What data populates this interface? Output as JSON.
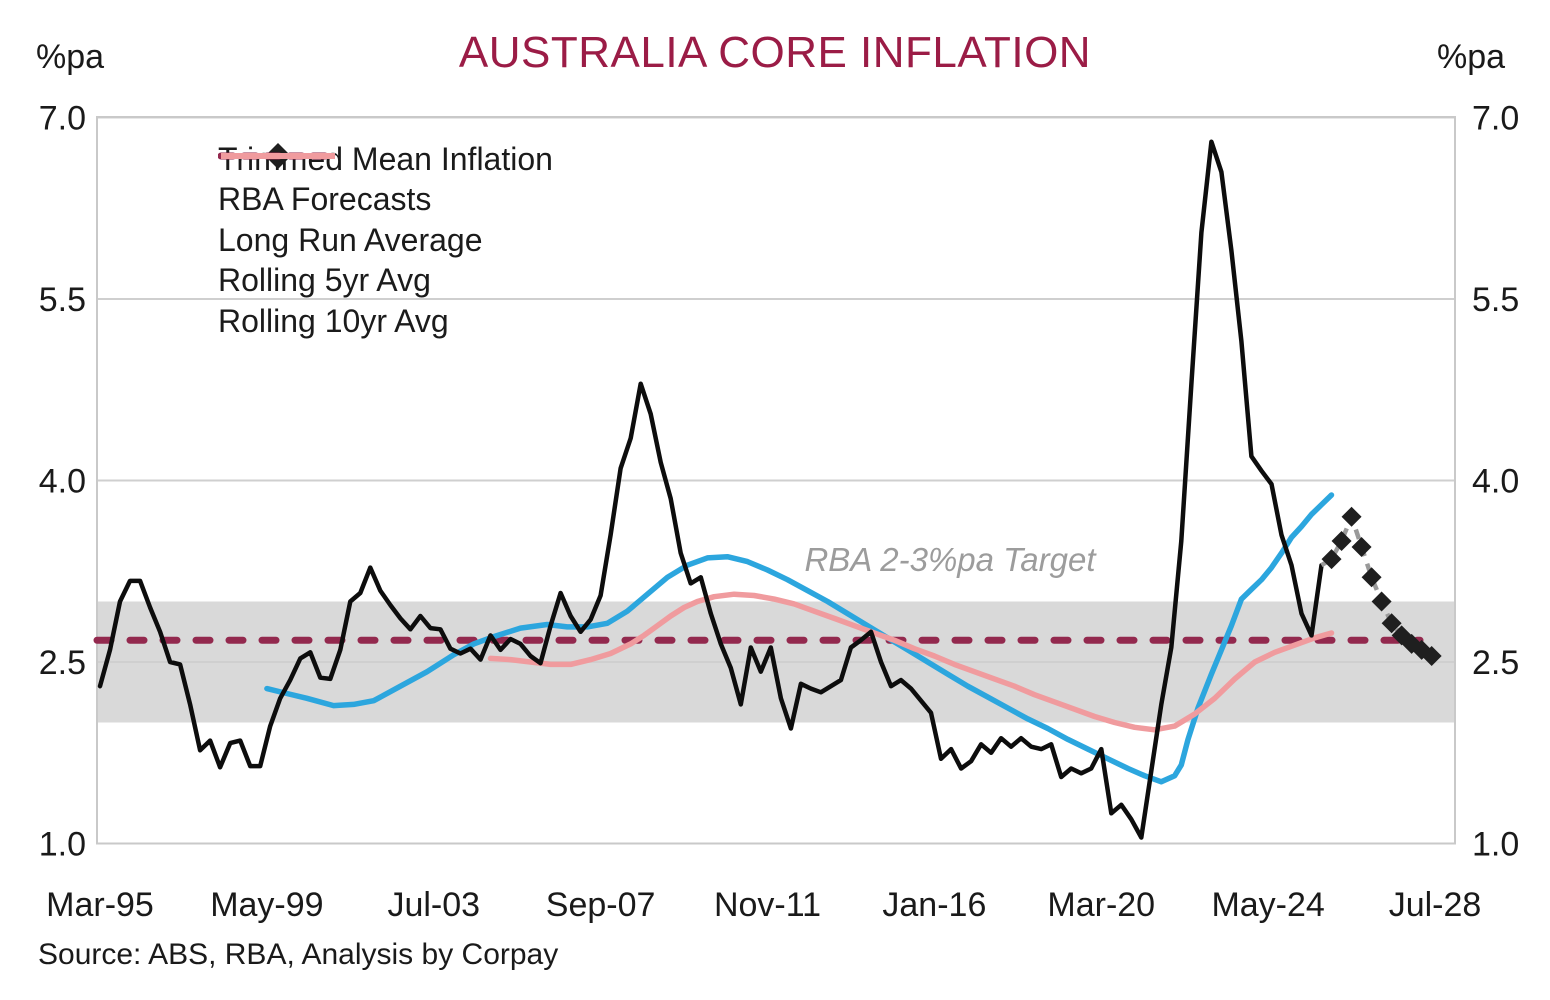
{
  "header": {
    "title": "AUSTRALIA CORE INFLATION",
    "y_unit_left": "%pa",
    "y_unit_right": "%pa"
  },
  "annotations": {
    "target_label": "RBA 2-3%pa Target",
    "source": "Source: ABS, RBA, Analysis by Corpay"
  },
  "legend": [
    {
      "label": "Trimmed Mean Inflation",
      "swatch": "solid",
      "color": "#0d0d0d",
      "width": 5
    },
    {
      "label": "RBA Forecasts",
      "swatch": "dash-diamond",
      "color": "#9a9a9a",
      "width": 4.5
    },
    {
      "label": "Long Run Average",
      "swatch": "dashed",
      "color": "#93294E",
      "width": 7
    },
    {
      "label": "Rolling 5yr Avg",
      "swatch": "solid",
      "color": "#2CA6DE",
      "width": 6
    },
    {
      "label": "Rolling 10yr Avg",
      "swatch": "solid",
      "color": "#F09B9E",
      "width": 6
    }
  ],
  "colors": {
    "title": "#9B1C46",
    "band": "#D9D9D9",
    "grid": "#CFCFCF",
    "border": "#C9C9C9",
    "axis_text": "#1a1a1a",
    "target_text": "#9C9C9C",
    "trimmed_mean": "#0d0d0d",
    "forecast_dash": "#9a9a9a",
    "forecast_diamond": "#1f1f1f",
    "long_run_avg": "#93294E",
    "rolling_5yr": "#2CA6DE",
    "rolling_10yr": "#F09B9E"
  },
  "chart_data": {
    "type": "line",
    "title": "AUSTRALIA CORE INFLATION",
    "ylabel": "%pa",
    "ylim": [
      1.0,
      7.0
    ],
    "y_ticks": [
      "7.0",
      "5.5",
      "4.0",
      "2.5",
      "1.0"
    ],
    "x_tick_labels": [
      "Mar-95",
      "May-99",
      "Jul-03",
      "Sep-07",
      "Nov-11",
      "Jan-16",
      "Mar-20",
      "May-24",
      "Jul-28"
    ],
    "x_tick_months": [
      0,
      50,
      100,
      150,
      200,
      250,
      300,
      350,
      400
    ],
    "grid": "horizontal",
    "legend_position": "upper-left-inside",
    "target_band": {
      "label": "RBA 2-3%pa Target",
      "from": 2.0,
      "to": 3.0
    },
    "long_run_average": {
      "name": "Long Run Average",
      "value": 2.68,
      "style": "dashed"
    },
    "series": [
      {
        "name": "Trimmed Mean Inflation",
        "style": "solid",
        "start_month": 0,
        "step_months": 3,
        "start_label": "Mar-95",
        "end_label": "Sep-25",
        "values": [
          2.3,
          2.6,
          3.0,
          3.17,
          3.17,
          2.95,
          2.75,
          2.5,
          2.48,
          2.15,
          1.77,
          1.85,
          1.63,
          1.83,
          1.85,
          1.64,
          1.64,
          1.97,
          2.2,
          2.35,
          2.53,
          2.58,
          2.37,
          2.36,
          2.6,
          3.0,
          3.07,
          3.28,
          3.09,
          2.97,
          2.86,
          2.77,
          2.88,
          2.78,
          2.77,
          2.61,
          2.57,
          2.61,
          2.52,
          2.72,
          2.6,
          2.69,
          2.65,
          2.55,
          2.49,
          2.8,
          3.07,
          2.88,
          2.75,
          2.85,
          3.05,
          3.55,
          4.1,
          4.35,
          4.8,
          4.55,
          4.15,
          3.85,
          3.4,
          3.15,
          3.2,
          2.9,
          2.65,
          2.45,
          2.15,
          2.62,
          2.42,
          2.62,
          2.2,
          1.95,
          2.32,
          2.28,
          2.25,
          2.3,
          2.35,
          2.62,
          2.68,
          2.75,
          2.5,
          2.3,
          2.35,
          2.28,
          2.18,
          2.08,
          1.7,
          1.78,
          1.62,
          1.68,
          1.82,
          1.75,
          1.87,
          1.8,
          1.87,
          1.8,
          1.78,
          1.82,
          1.55,
          1.62,
          1.58,
          1.62,
          1.78,
          1.25,
          1.32,
          1.2,
          1.05,
          1.6,
          2.15,
          2.62,
          3.5,
          4.8,
          6.05,
          6.8,
          6.55,
          5.9,
          5.15,
          4.2,
          4.08,
          3.97,
          3.55,
          3.3,
          2.9,
          2.72,
          3.3
        ]
      },
      {
        "name": "RBA Forecasts",
        "style": "dashed-diamond",
        "points": [
          [
            366,
            3.3
          ],
          [
            369,
            3.35
          ],
          [
            372,
            3.5
          ],
          [
            375,
            3.7
          ],
          [
            378,
            3.45
          ],
          [
            381,
            3.2
          ],
          [
            384,
            3.0
          ],
          [
            387,
            2.82
          ],
          [
            390,
            2.72
          ],
          [
            393,
            2.65
          ],
          [
            396,
            2.6
          ],
          [
            399,
            2.55
          ]
        ]
      },
      {
        "name": "Rolling 5yr Avg",
        "style": "solid",
        "points": [
          [
            50,
            2.28
          ],
          [
            56,
            2.24
          ],
          [
            62,
            2.2
          ],
          [
            70,
            2.14
          ],
          [
            76,
            2.15
          ],
          [
            82,
            2.18
          ],
          [
            90,
            2.3
          ],
          [
            98,
            2.42
          ],
          [
            106,
            2.56
          ],
          [
            112,
            2.65
          ],
          [
            118,
            2.71
          ],
          [
            126,
            2.78
          ],
          [
            134,
            2.81
          ],
          [
            140,
            2.79
          ],
          [
            146,
            2.79
          ],
          [
            152,
            2.82
          ],
          [
            158,
            2.92
          ],
          [
            164,
            3.06
          ],
          [
            170,
            3.2
          ],
          [
            176,
            3.3
          ],
          [
            182,
            3.36
          ],
          [
            188,
            3.37
          ],
          [
            194,
            3.33
          ],
          [
            200,
            3.26
          ],
          [
            206,
            3.18
          ],
          [
            212,
            3.09
          ],
          [
            218,
            3.0
          ],
          [
            224,
            2.9
          ],
          [
            230,
            2.8
          ],
          [
            236,
            2.7
          ],
          [
            242,
            2.6
          ],
          [
            248,
            2.5
          ],
          [
            254,
            2.4
          ],
          [
            260,
            2.3
          ],
          [
            266,
            2.21
          ],
          [
            272,
            2.12
          ],
          [
            278,
            2.03
          ],
          [
            284,
            1.95
          ],
          [
            290,
            1.86
          ],
          [
            296,
            1.78
          ],
          [
            302,
            1.7
          ],
          [
            308,
            1.62
          ],
          [
            313,
            1.56
          ],
          [
            318,
            1.51
          ],
          [
            322,
            1.56
          ],
          [
            324,
            1.65
          ],
          [
            326,
            1.86
          ],
          [
            329,
            2.12
          ],
          [
            333,
            2.4
          ],
          [
            336,
            2.6
          ],
          [
            339,
            2.8
          ],
          [
            342,
            3.02
          ],
          [
            345,
            3.1
          ],
          [
            348,
            3.18
          ],
          [
            351,
            3.28
          ],
          [
            354,
            3.4
          ],
          [
            357,
            3.53
          ],
          [
            360,
            3.62
          ],
          [
            363,
            3.72
          ],
          [
            366,
            3.8
          ],
          [
            369,
            3.88
          ]
        ]
      },
      {
        "name": "Rolling 10yr Avg",
        "style": "solid",
        "points": [
          [
            117,
            2.53
          ],
          [
            123,
            2.52
          ],
          [
            129,
            2.5
          ],
          [
            135,
            2.48
          ],
          [
            141,
            2.48
          ],
          [
            147,
            2.52
          ],
          [
            153,
            2.57
          ],
          [
            159,
            2.65
          ],
          [
            163,
            2.72
          ],
          [
            167,
            2.8
          ],
          [
            171,
            2.88
          ],
          [
            175,
            2.95
          ],
          [
            179,
            3.0
          ],
          [
            184,
            3.04
          ],
          [
            190,
            3.06
          ],
          [
            196,
            3.05
          ],
          [
            202,
            3.02
          ],
          [
            208,
            2.98
          ],
          [
            214,
            2.92
          ],
          [
            220,
            2.86
          ],
          [
            226,
            2.8
          ],
          [
            232,
            2.74
          ],
          [
            238,
            2.68
          ],
          [
            244,
            2.61
          ],
          [
            250,
            2.55
          ],
          [
            256,
            2.48
          ],
          [
            262,
            2.42
          ],
          [
            268,
            2.36
          ],
          [
            274,
            2.3
          ],
          [
            280,
            2.23
          ],
          [
            286,
            2.17
          ],
          [
            292,
            2.11
          ],
          [
            298,
            2.05
          ],
          [
            304,
            2.0
          ],
          [
            310,
            1.96
          ],
          [
            316,
            1.94
          ],
          [
            322,
            1.97
          ],
          [
            328,
            2.07
          ],
          [
            334,
            2.2
          ],
          [
            340,
            2.36
          ],
          [
            346,
            2.5
          ],
          [
            352,
            2.58
          ],
          [
            358,
            2.64
          ],
          [
            364,
            2.7
          ],
          [
            369,
            2.74
          ]
        ]
      }
    ]
  }
}
